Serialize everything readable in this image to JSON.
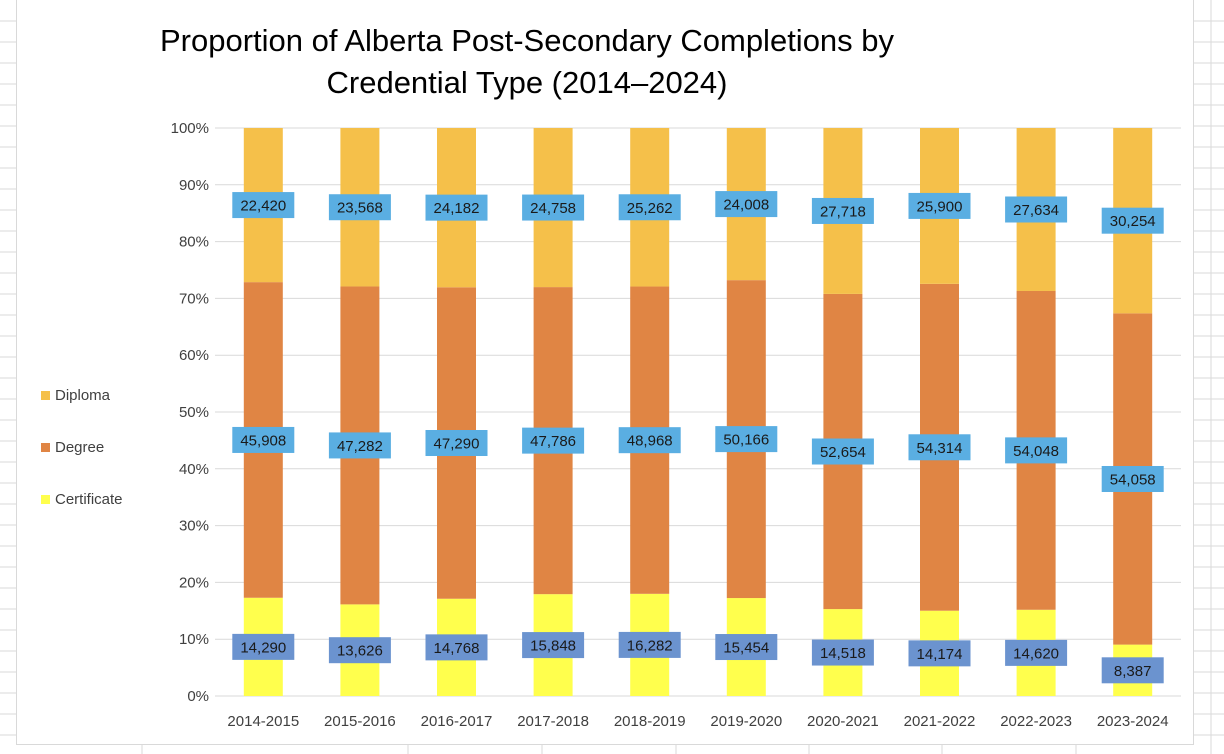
{
  "chart_data": {
    "type": "bar",
    "stacked": "percent",
    "title_lines": [
      "Proportion of Alberta Post-Secondary Completions by",
      "Credential Type (2014–2024)"
    ],
    "categories": [
      "2014-2015",
      "2015-2016",
      "2016-2017",
      "2017-2018",
      "2018-2019",
      "2019-2020",
      "2020-2021",
      "2021-2022",
      "2022-2023",
      "2023-2024"
    ],
    "series": [
      {
        "name": "Certificate",
        "color": "#ffff4d",
        "values": [
          14290,
          13626,
          14768,
          15848,
          16282,
          15454,
          14518,
          14174,
          14620,
          8387
        ]
      },
      {
        "name": "Degree",
        "color": "#e08544",
        "values": [
          45908,
          47282,
          47290,
          47786,
          48968,
          50166,
          52654,
          54314,
          54048,
          54058
        ]
      },
      {
        "name": "Diploma",
        "color": "#f5c04a",
        "values": [
          22420,
          23568,
          24182,
          24758,
          25262,
          24008,
          27718,
          25900,
          27634,
          30254
        ]
      }
    ],
    "y_ticks": [
      "0%",
      "10%",
      "20%",
      "30%",
      "40%",
      "50%",
      "60%",
      "70%",
      "80%",
      "90%",
      "100%"
    ],
    "ylim": [
      0,
      100
    ],
    "grid": true,
    "legend": {
      "position": "left",
      "order": [
        "Diploma",
        "Degree",
        "Certificate"
      ]
    },
    "label_colors": {
      "upper": "#5aaee2",
      "certificate": "#6b93cf"
    },
    "grid_color": "#d9d9d9"
  }
}
